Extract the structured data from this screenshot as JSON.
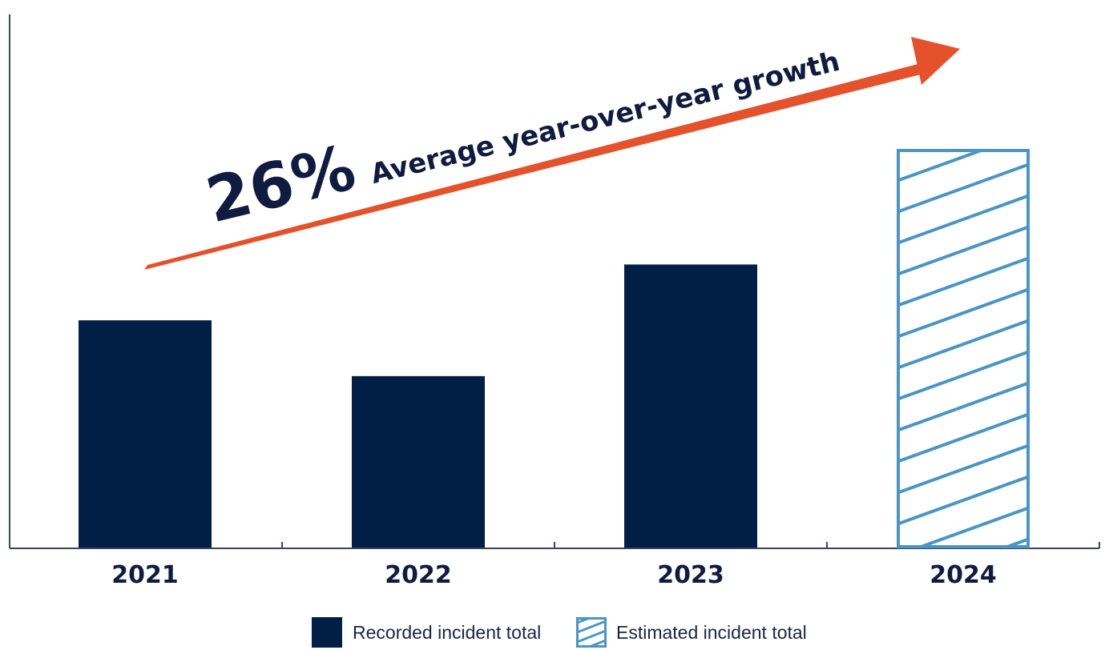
{
  "chart_data": {
    "type": "bar",
    "categories": [
      "2021",
      "2022",
      "2023",
      "2024"
    ],
    "values": [
      57,
      43,
      71,
      100
    ],
    "bar_kinds": [
      "recorded",
      "recorded",
      "recorded",
      "estimated"
    ],
    "ylim": [
      0,
      100
    ],
    "y_axis_labels": false,
    "grid": false,
    "headline": {
      "percent": "26%",
      "text": "Average year-over-year growth"
    },
    "legend": {
      "placement": "bottom-center",
      "items": [
        {
          "kind": "recorded",
          "label": "Recorded incident total"
        },
        {
          "kind": "estimated",
          "label": "Estimated incident total"
        }
      ]
    },
    "colors": {
      "recorded": "#001e46",
      "estimated": "#4a95c4",
      "arrow": "#e4512a",
      "axis": "#3a4560",
      "text": "#0f1c3f"
    }
  }
}
